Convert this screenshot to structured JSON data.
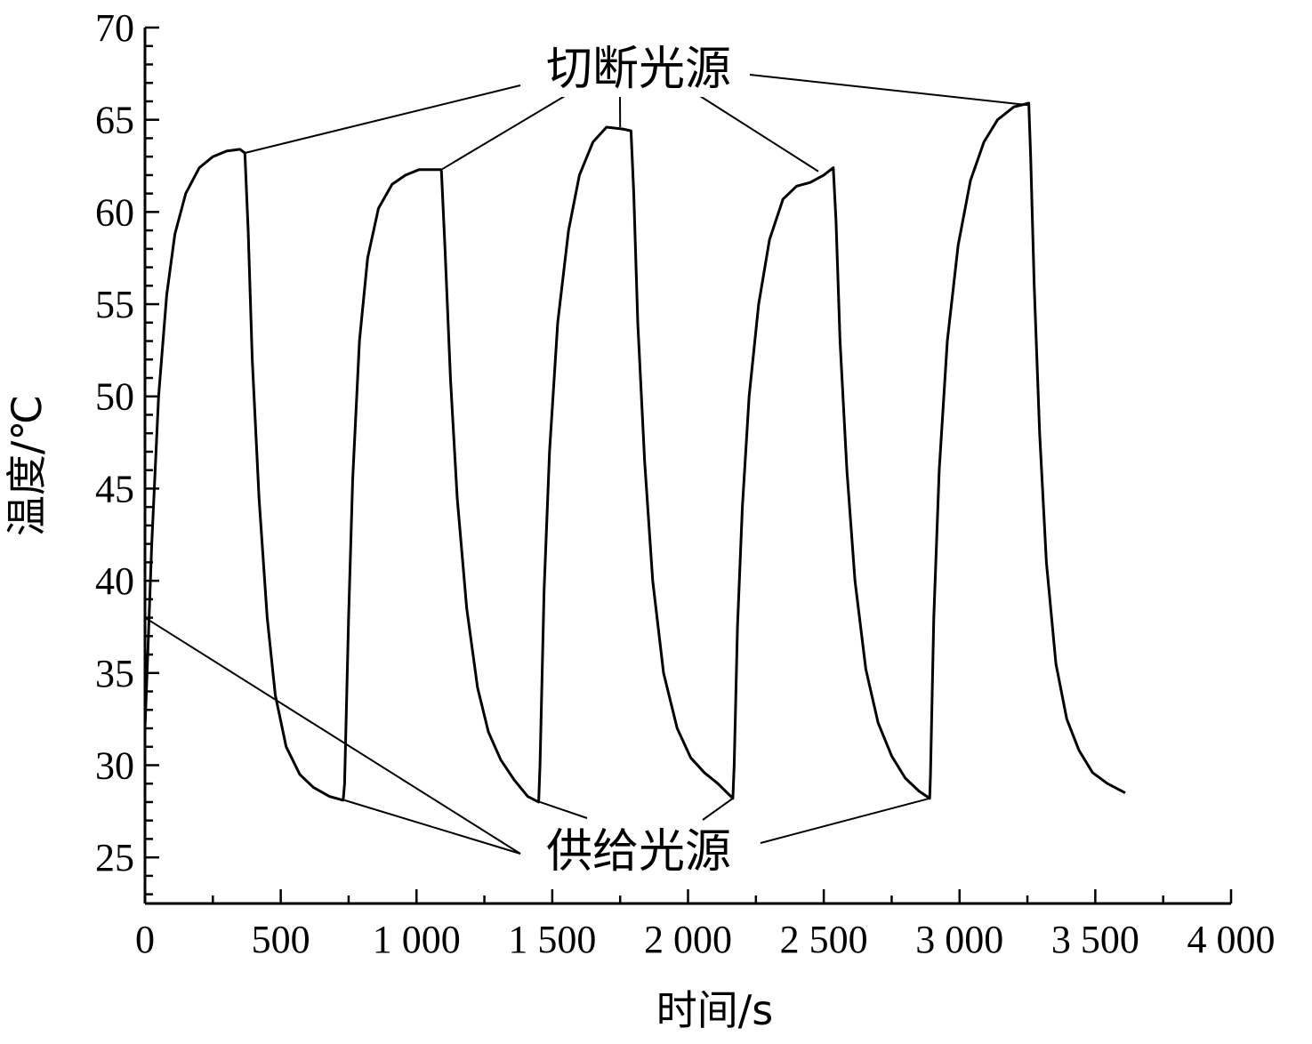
{
  "chart_data": {
    "type": "line",
    "xlabel": "时间/s",
    "ylabel": "温度/℃",
    "xlim": [
      0,
      4000
    ],
    "ylim": [
      22.5,
      70
    ],
    "x_ticks": [
      0,
      500,
      1000,
      1500,
      2000,
      2500,
      3000,
      3500,
      4000
    ],
    "x_tick_labels": [
      "0",
      "500",
      "1 000",
      "1 500",
      "2 000",
      "2 500",
      "3 000",
      "3 500",
      "4 000"
    ],
    "y_ticks": [
      25,
      30,
      35,
      40,
      45,
      50,
      55,
      60,
      65,
      70
    ],
    "y_tick_labels": [
      "25",
      "30",
      "35",
      "40",
      "45",
      "50",
      "55",
      "60",
      "65",
      "70"
    ],
    "grid": false,
    "series": [
      {
        "color": "#000000",
        "points": [
          [
            0,
            32.0
          ],
          [
            10,
            36.0
          ],
          [
            25,
            42.0
          ],
          [
            50,
            50.0
          ],
          [
            80,
            55.5
          ],
          [
            110,
            58.8
          ],
          [
            150,
            61.0
          ],
          [
            200,
            62.4
          ],
          [
            250,
            63.0
          ],
          [
            300,
            63.3
          ],
          [
            350,
            63.4
          ],
          [
            368,
            63.2
          ],
          [
            380,
            59.0
          ],
          [
            395,
            52.0
          ],
          [
            420,
            44.5
          ],
          [
            450,
            38.0
          ],
          [
            480,
            33.8
          ],
          [
            520,
            31.0
          ],
          [
            570,
            29.5
          ],
          [
            620,
            28.8
          ],
          [
            680,
            28.3
          ],
          [
            730,
            28.1
          ],
          [
            735,
            29.0
          ],
          [
            750,
            38.0
          ],
          [
            765,
            45.5
          ],
          [
            790,
            53.0
          ],
          [
            820,
            57.5
          ],
          [
            860,
            60.2
          ],
          [
            910,
            61.5
          ],
          [
            960,
            62.0
          ],
          [
            1010,
            62.3
          ],
          [
            1090,
            62.3
          ],
          [
            1092,
            62.2
          ],
          [
            1105,
            58.0
          ],
          [
            1125,
            51.0
          ],
          [
            1150,
            44.5
          ],
          [
            1185,
            38.5
          ],
          [
            1225,
            34.2
          ],
          [
            1265,
            31.8
          ],
          [
            1310,
            30.3
          ],
          [
            1360,
            29.2
          ],
          [
            1410,
            28.3
          ],
          [
            1450,
            28.0
          ],
          [
            1455,
            30.0
          ],
          [
            1470,
            39.5
          ],
          [
            1490,
            47.0
          ],
          [
            1520,
            54.0
          ],
          [
            1560,
            59.0
          ],
          [
            1600,
            62.0
          ],
          [
            1650,
            63.8
          ],
          [
            1700,
            64.6
          ],
          [
            1760,
            64.5
          ],
          [
            1790,
            64.4
          ],
          [
            1800,
            61.0
          ],
          [
            1815,
            54.0
          ],
          [
            1840,
            46.5
          ],
          [
            1870,
            40.0
          ],
          [
            1910,
            35.0
          ],
          [
            1960,
            32.0
          ],
          [
            2010,
            30.4
          ],
          [
            2060,
            29.6
          ],
          [
            2110,
            29.0
          ],
          [
            2165,
            28.2
          ],
          [
            2170,
            30.0
          ],
          [
            2182,
            37.5
          ],
          [
            2200,
            44.0
          ],
          [
            2225,
            50.0
          ],
          [
            2260,
            55.0
          ],
          [
            2300,
            58.5
          ],
          [
            2350,
            60.7
          ],
          [
            2400,
            61.4
          ],
          [
            2450,
            61.6
          ],
          [
            2500,
            62.0
          ],
          [
            2535,
            62.4
          ],
          [
            2545,
            59.5
          ],
          [
            2560,
            53.0
          ],
          [
            2585,
            46.0
          ],
          [
            2615,
            40.0
          ],
          [
            2655,
            35.2
          ],
          [
            2700,
            32.3
          ],
          [
            2750,
            30.5
          ],
          [
            2800,
            29.3
          ],
          [
            2850,
            28.6
          ],
          [
            2890,
            28.2
          ],
          [
            2893,
            29.5
          ],
          [
            2905,
            38.0
          ],
          [
            2925,
            46.0
          ],
          [
            2955,
            53.0
          ],
          [
            2995,
            58.2
          ],
          [
            3040,
            61.7
          ],
          [
            3090,
            63.8
          ],
          [
            3140,
            65.0
          ],
          [
            3200,
            65.7
          ],
          [
            3255,
            65.9
          ],
          [
            3262,
            63.0
          ],
          [
            3275,
            56.0
          ],
          [
            3295,
            48.0
          ],
          [
            3320,
            41.0
          ],
          [
            3355,
            35.5
          ],
          [
            3395,
            32.5
          ],
          [
            3440,
            30.8
          ],
          [
            3490,
            29.6
          ],
          [
            3545,
            29.0
          ],
          [
            3610,
            28.5
          ]
        ]
      }
    ],
    "annotations": [
      {
        "text": "切断光源",
        "targets": [
          [
            368,
            63.2
          ],
          [
            1092,
            62.3
          ],
          [
            1750,
            64.6
          ],
          [
            2480,
            62.2
          ],
          [
            3250,
            65.8
          ]
        ]
      },
      {
        "text": "供给光源",
        "targets": [
          [
            0,
            38.0
          ],
          [
            735,
            28.1
          ],
          [
            1455,
            28.0
          ],
          [
            2165,
            28.2
          ],
          [
            2890,
            28.2
          ]
        ]
      }
    ]
  }
}
